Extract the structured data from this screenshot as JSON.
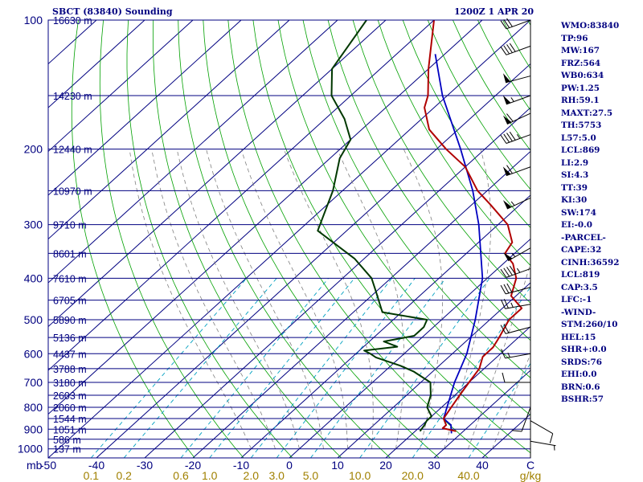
{
  "header": {
    "station": "SBCT (83840) Sounding",
    "time": "1200Z  1 APR 20"
  },
  "indices": [
    "WMO:83840",
    "TP:96",
    "MW:167",
    "FRZ:564",
    "WB0:634",
    "PW:1.25",
    "RH:59.1",
    "MAXT:27.5",
    "TH:5753",
    "L57:5.0",
    "LCL:869",
    "LI:2.9",
    "SI:4.3",
    "TT:39",
    "KI:30",
    "SW:174",
    "EI:-0.0",
    "-PARCEL-",
    "CAPE:32",
    "CINH:36592",
    "LCL:819",
    "CAP:3.5",
    "LFC:-1",
    "-WIND-",
    "STM:260/10",
    "HEL:15",
    "SHR+:0.0",
    "SRDS:76",
    "EHI:0.0",
    "BRN:0.6",
    "BSHR:57"
  ],
  "colors": {
    "text": "#000080",
    "isobar": "#000080",
    "isotherm": "#000080",
    "dry_adiabat": "#00a000",
    "moist_adiabat": "#808080",
    "mixing_ratio": "#00a0c0",
    "temperature": "#b00000",
    "dewpoint": "#003800",
    "parcel": "#0000c0",
    "wind_barb": "#000000",
    "mixing_ratio_label": "#a08000"
  },
  "chart_data": {
    "type": "skew-t",
    "y_axis": {
      "unit": "mb",
      "pressure_labels": [
        100,
        200,
        300,
        400,
        500,
        600,
        700,
        800,
        900,
        1000
      ]
    },
    "x_axis": {
      "unit_label": "mb",
      "temperature_ticks": [
        "-50",
        "-40",
        "-30",
        "-20",
        "-10",
        "0",
        "10",
        "20",
        "30",
        "40",
        "C"
      ],
      "temperature_values": [
        -50,
        -40,
        -30,
        -20,
        -10,
        0,
        10,
        20,
        30,
        40
      ],
      "mixing_ratio_labels": [
        "0.1",
        "0.2",
        "0.6",
        "1.0",
        "2.0",
        "3.0",
        "5.0",
        "10.0",
        "20.0",
        "40.0",
        "g/kg"
      ],
      "mixing_ratio_values": [
        0.1,
        0.2,
        0.6,
        1.0,
        2.0,
        3.0,
        5.0,
        10.0,
        20.0,
        40.0
      ]
    },
    "height_labels": [
      {
        "p": 100,
        "text": "16630 m"
      },
      {
        "p": 150,
        "text": "14230 m"
      },
      {
        "p": 200,
        "text": "12440 m"
      },
      {
        "p": 250,
        "text": "10970 m"
      },
      {
        "p": 300,
        "text": "9710 m"
      },
      {
        "p": 350,
        "text": "8601 m"
      },
      {
        "p": 400,
        "text": "7610 m"
      },
      {
        "p": 450,
        "text": "6705 m"
      },
      {
        "p": 500,
        "text": "5890 m"
      },
      {
        "p": 550,
        "text": "5136 m"
      },
      {
        "p": 600,
        "text": "4437 m"
      },
      {
        "p": 650,
        "text": "3788 m"
      },
      {
        "p": 700,
        "text": "3180 m"
      },
      {
        "p": 750,
        "text": "2603 m"
      },
      {
        "p": 800,
        "text": "2060 m"
      },
      {
        "p": 850,
        "text": "1544 m"
      },
      {
        "p": 900,
        "text": "1051 m"
      },
      {
        "p": 950,
        "text": "586 m"
      },
      {
        "p": 1000,
        "text": "137 m"
      }
    ],
    "temperature": [
      [
        910,
        28.5
      ],
      [
        895,
        25
      ],
      [
        880,
        25
      ],
      [
        850,
        23
      ],
      [
        800,
        22
      ],
      [
        750,
        21
      ],
      [
        700,
        20
      ],
      [
        650,
        19
      ],
      [
        610,
        17
      ],
      [
        580,
        17
      ],
      [
        550,
        16
      ],
      [
        500,
        14
      ],
      [
        470,
        14
      ],
      [
        440,
        9
      ],
      [
        400,
        6
      ],
      [
        370,
        2
      ],
      [
        350,
        -2
      ],
      [
        330,
        -3
      ],
      [
        300,
        -8
      ],
      [
        270,
        -16
      ],
      [
        250,
        -22
      ],
      [
        220,
        -30
      ],
      [
        200,
        -38
      ],
      [
        180,
        -46
      ],
      [
        160,
        -52
      ],
      [
        150,
        -54
      ],
      [
        130,
        -60
      ],
      [
        100,
        -70
      ]
    ],
    "dewpoint": [
      [
        910,
        21
      ],
      [
        880,
        20.5
      ],
      [
        860,
        20
      ],
      [
        840,
        20
      ],
      [
        800,
        17
      ],
      [
        750,
        15
      ],
      [
        700,
        12
      ],
      [
        660,
        6
      ],
      [
        640,
        2
      ],
      [
        612,
        -5
      ],
      [
        600,
        -7
      ],
      [
        590,
        -9
      ],
      [
        578,
        -3
      ],
      [
        562,
        -7
      ],
      [
        545,
        -2
      ],
      [
        520,
        -2
      ],
      [
        500,
        -3
      ],
      [
        480,
        -14
      ],
      [
        430,
        -20
      ],
      [
        400,
        -24
      ],
      [
        360,
        -32
      ],
      [
        310,
        -46
      ],
      [
        250,
        -52
      ],
      [
        210,
        -58
      ],
      [
        190,
        -60
      ],
      [
        170,
        -66
      ],
      [
        150,
        -74
      ],
      [
        130,
        -80
      ],
      [
        100,
        -84
      ]
    ],
    "parcel": [
      [
        920,
        28
      ],
      [
        880,
        26
      ],
      [
        850,
        23
      ],
      [
        700,
        17
      ],
      [
        600,
        13
      ],
      [
        500,
        7
      ],
      [
        400,
        -1
      ],
      [
        300,
        -14
      ],
      [
        250,
        -23
      ],
      [
        200,
        -35
      ],
      [
        150,
        -51
      ],
      [
        120,
        -62
      ]
    ],
    "wind_barbs": [
      {
        "p": 100,
        "dir": 250,
        "kt": 30
      },
      {
        "p": 115,
        "dir": 250,
        "kt": 40
      },
      {
        "p": 135,
        "dir": 255,
        "kt": 50
      },
      {
        "p": 150,
        "dir": 250,
        "kt": 55
      },
      {
        "p": 165,
        "dir": 245,
        "kt": 60
      },
      {
        "p": 185,
        "dir": 250,
        "kt": 45
      },
      {
        "p": 220,
        "dir": 250,
        "kt": 60
      },
      {
        "p": 260,
        "dir": 245,
        "kt": 55
      },
      {
        "p": 340,
        "dir": 240,
        "kt": 55
      },
      {
        "p": 380,
        "dir": 250,
        "kt": 45
      },
      {
        "p": 420,
        "dir": 255,
        "kt": 30
      },
      {
        "p": 460,
        "dir": 260,
        "kt": 25
      },
      {
        "p": 520,
        "dir": 255,
        "kt": 20
      },
      {
        "p": 600,
        "dir": 260,
        "kt": 15
      },
      {
        "p": 700,
        "dir": 270,
        "kt": 10
      },
      {
        "p": 800,
        "dir": 200,
        "kt": 10
      },
      {
        "p": 860,
        "dir": 120,
        "kt": 10
      },
      {
        "p": 960,
        "dir": 100,
        "kt": 5
      }
    ]
  }
}
